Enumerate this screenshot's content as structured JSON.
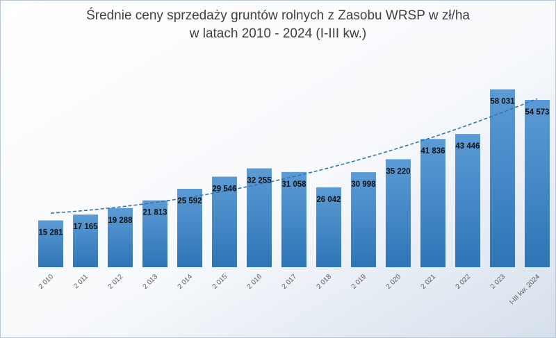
{
  "chart_data": {
    "type": "bar",
    "title": [
      "Średnie ceny sprzedaży gruntów rolnych z Zasobu WRSP w zł/ha",
      "w latach 2010 - 2024 (I-III kw.)"
    ],
    "xlabel": "",
    "ylabel": "",
    "categories": [
      "2 010",
      "2 011",
      "2 012",
      "2 013",
      "2 014",
      "2 015",
      "2 016",
      "2 017",
      "2 018",
      "2 019",
      "2 020",
      "2 021",
      "2 022",
      "2 023",
      "I-III kw. 2024"
    ],
    "values": [
      15281,
      17165,
      19288,
      21813,
      25592,
      29546,
      32255,
      31058,
      26042,
      30998,
      35220,
      41836,
      43446,
      58031,
      54573
    ],
    "value_labels": [
      "15 281",
      "17 165",
      "19 288",
      "21 813",
      "25 592",
      "29 546",
      "32 255",
      "31 058",
      "26 042",
      "30 998",
      "35 220",
      "41 836",
      "43 446",
      "58 031",
      "54 573"
    ],
    "trendline": {
      "type": "polynomial",
      "style": "dashed"
    },
    "ylim": [
      0,
      60000
    ],
    "grid": false,
    "legend": "none",
    "colors": {
      "bar_top": "#5B9BD5",
      "bar_bottom": "#2E75B6",
      "trendline": "#2E75B6",
      "background_light": "#ffffff",
      "background_dark": "#d9e2ee"
    }
  }
}
